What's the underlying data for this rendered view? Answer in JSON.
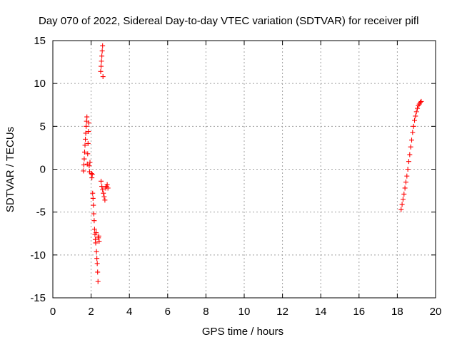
{
  "chart_data": {
    "type": "scatter",
    "title": "Day 070 of 2022, Sidereal Day-to-day VTEC variation (SDTVAR) for receiver pifl",
    "xlabel": "GPS time / hours",
    "ylabel": "SDTVAR / TECUs",
    "xlim": [
      0,
      20
    ],
    "ylim": [
      -15,
      15
    ],
    "xticks": [
      0,
      2,
      4,
      6,
      8,
      10,
      12,
      14,
      16,
      18,
      20
    ],
    "yticks": [
      -15,
      -10,
      -5,
      0,
      5,
      10,
      15
    ],
    "grid": true,
    "marker": "+",
    "series": [
      {
        "name": "SDTVAR",
        "color": "#ff0000",
        "x": [
          1.6,
          1.62,
          1.64,
          1.66,
          1.68,
          1.7,
          1.72,
          1.74,
          1.76,
          1.78,
          1.8,
          1.82,
          1.84,
          1.86,
          1.88,
          1.9,
          1.92,
          1.94,
          2.02,
          2.04,
          2.06,
          2.08,
          2.1,
          2.12,
          2.14,
          2.16,
          2.18,
          2.2,
          2.22,
          2.24,
          2.26,
          2.28,
          2.3,
          2.32,
          2.34,
          2.36,
          2.38,
          2.4,
          2.42,
          2.5,
          2.52,
          2.54,
          2.56,
          2.58,
          2.6,
          2.62,
          2.52,
          2.56,
          2.6,
          2.64,
          2.68,
          2.72,
          2.76,
          2.8,
          2.84,
          2.88,
          18.2,
          18.25,
          18.3,
          18.35,
          18.4,
          18.45,
          18.5,
          18.55,
          18.6,
          18.65,
          18.7,
          18.75,
          18.8,
          18.85,
          18.9,
          18.95,
          19.0,
          19.05,
          19.1,
          19.15,
          19.2,
          19.25
        ],
        "y": [
          -0.2,
          0.5,
          1.2,
          2.0,
          2.8,
          3.5,
          4.2,
          5.0,
          5.6,
          6.1,
          0.6,
          1.8,
          3.0,
          4.4,
          5.4,
          0.4,
          -0.3,
          0.8,
          -0.5,
          -1.0,
          -0.6,
          -2.8,
          -3.4,
          -4.2,
          -5.2,
          -6.0,
          -7.0,
          -7.6,
          -8.2,
          -8.6,
          -7.4,
          -9.6,
          -10.4,
          -11.0,
          -12.0,
          -13.1,
          -8.0,
          -7.8,
          -8.4,
          11.4,
          12.0,
          12.6,
          13.2,
          13.8,
          14.4,
          10.8,
          -1.4,
          -2.0,
          -2.4,
          -2.8,
          -3.2,
          -3.6,
          -2.2,
          -2.0,
          -1.8,
          -2.2,
          -4.7,
          -4.1,
          -3.5,
          -2.9,
          -2.2,
          -1.5,
          -0.8,
          0.0,
          0.9,
          1.7,
          2.6,
          3.4,
          4.3,
          5.0,
          5.7,
          6.2,
          6.7,
          7.1,
          7.4,
          7.6,
          7.8,
          7.9
        ]
      }
    ]
  }
}
